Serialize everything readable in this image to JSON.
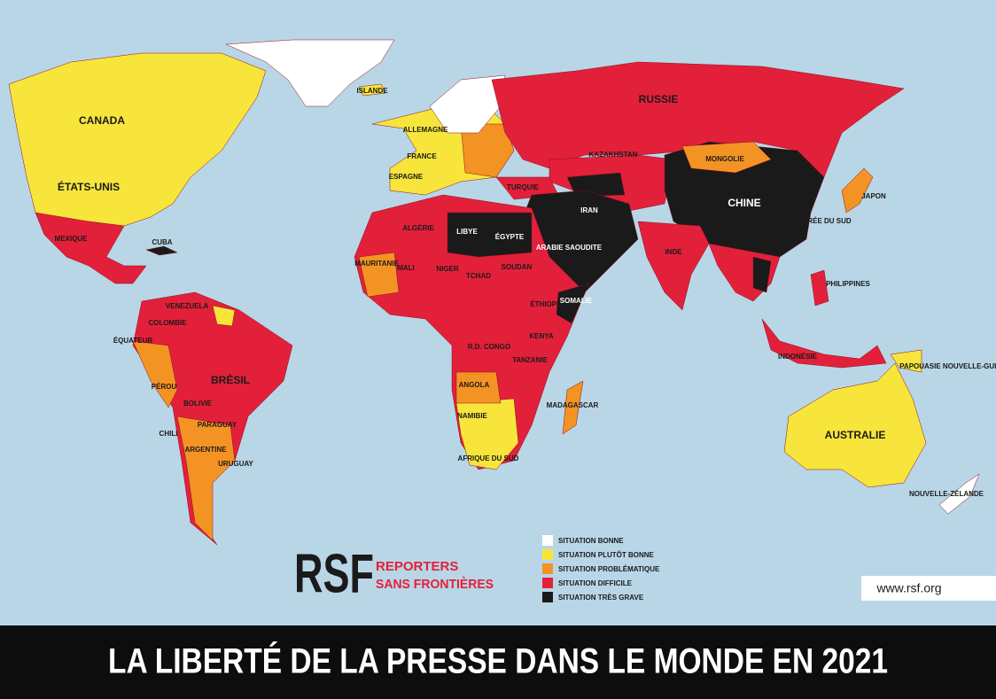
{
  "title": "LA LIBERTÉ DE LA PRESSE DANS LE MONDE EN 2021",
  "url": "www.rsf.org",
  "logo": {
    "mark": "RSF",
    "line1": "REPORTERS",
    "line2": "SANS FRONTIÈRES"
  },
  "legend": [
    {
      "label": "SITUATION BONNE",
      "color": "#ffffff"
    },
    {
      "label": "SITUATION PLUTÔT BONNE",
      "color": "#f7e53b"
    },
    {
      "label": "SITUATION PROBLÉMATIQUE",
      "color": "#f39324"
    },
    {
      "label": "SITUATION DIFFICILE",
      "color": "#e3203a"
    },
    {
      "label": "SITUATION TRÈS GRAVE",
      "color": "#1a1a1a"
    }
  ],
  "countries": [
    "CANADA",
    "ÉTATS-UNIS",
    "MEXIQUE",
    "RUSSIE",
    "CHINE",
    "KAZAKHSTAN",
    "MONGOLIE",
    "INDE",
    "BRÉSIL",
    "ARGENTINE",
    "AUSTRALIE",
    "ISLANDE",
    "LIBYE",
    "ÉGYPTE",
    "ALGÉRIE",
    "NIGER",
    "TCHAD",
    "SOUDAN",
    "MALI",
    "MAURITANIE",
    "R.D. CONGO",
    "ANGOLA",
    "NAMIBIE",
    "AFRIQUE DU SUD",
    "MADAGASCAR",
    "TANZANIE",
    "KENYA",
    "ÉTHIOPIE",
    "SOMALIE",
    "ARABIE SAOUDITE",
    "IRAN",
    "TURQUIE",
    "FRANCE",
    "ESPAGNE",
    "PHILIPPINES",
    "INDONÉSIE",
    "JAPON",
    "VENEZUELA",
    "COLOMBIE",
    "PÉROU",
    "BOLIVIE",
    "CHILI",
    "PARAGUAY",
    "URUGUAY",
    "ÉQUATEUR",
    "CUBA",
    "NOUVELLE-ZÉLANDE",
    "PAPOUASIE NOUVELLE-GUINÉE",
    "CORÉE DU SUD",
    "ALLEMAGNE"
  ]
}
